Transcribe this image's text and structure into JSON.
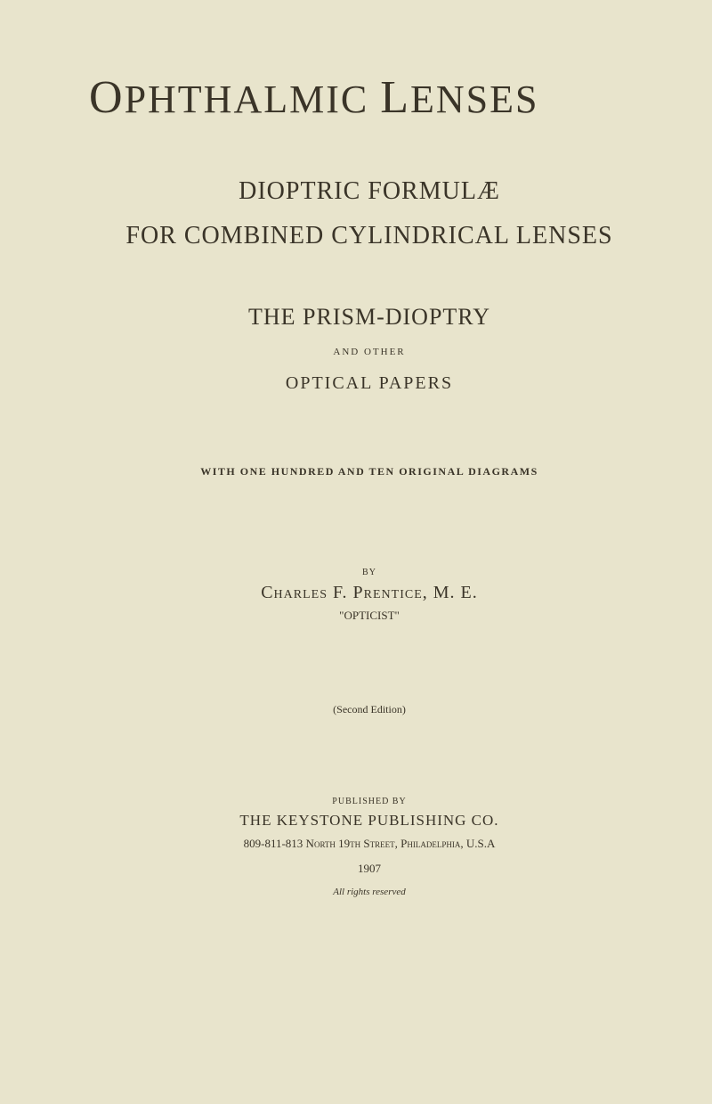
{
  "title": {
    "word1_cap": "O",
    "word1_rest": "PHTHALMIC",
    "word2_cap": "L",
    "word2_rest": "ENSES"
  },
  "subtitle1": "DIOPTRIC FORMULÆ",
  "subtitle2": "FOR COMBINED CYLINDRICAL LENSES",
  "section_title": "THE PRISM-DIOPTRY",
  "and_other": "AND OTHER",
  "optical_papers": "OPTICAL PAPERS",
  "diagrams": "WITH ONE HUNDRED AND TEN ORIGINAL DIAGRAMS",
  "by": "BY",
  "author": "Charles F. Prentice, M. E.",
  "opticist": "\"OPTICIST\"",
  "edition": "(Second Edition)",
  "published_by": "PUBLISHED BY",
  "publisher": "THE KEYSTONE PUBLISHING CO.",
  "address": "809-811-813 North 19th Street, Philadelphia, U.S.A",
  "year": "1907",
  "rights": "All rights reserved",
  "colors": {
    "background": "#e8e4cc",
    "text": "#3a3428"
  }
}
